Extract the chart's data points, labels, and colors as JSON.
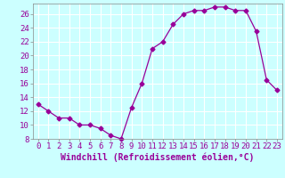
{
  "x": [
    0,
    1,
    2,
    3,
    4,
    5,
    6,
    7,
    8,
    9,
    10,
    11,
    12,
    13,
    14,
    15,
    16,
    17,
    18,
    19,
    20,
    21,
    22,
    23
  ],
  "y": [
    13,
    12,
    11,
    11,
    10,
    10,
    9.5,
    8.5,
    8,
    12.5,
    16,
    21,
    22,
    24.5,
    26,
    26.5,
    26.5,
    27,
    27,
    26.5,
    26.5,
    23.5,
    16.5,
    15
  ],
  "line_color": "#990099",
  "marker": "D",
  "marker_size": 2.5,
  "background_color": "#ccffff",
  "grid_color": "#ffffff",
  "xlabel": "Windchill (Refroidissement éolien,°C)",
  "xlim": [
    -0.5,
    23.5
  ],
  "ylim": [
    8,
    27.5
  ],
  "yticks": [
    8,
    10,
    12,
    14,
    16,
    18,
    20,
    22,
    24,
    26
  ],
  "xticks": [
    0,
    1,
    2,
    3,
    4,
    5,
    6,
    7,
    8,
    9,
    10,
    11,
    12,
    13,
    14,
    15,
    16,
    17,
    18,
    19,
    20,
    21,
    22,
    23
  ],
  "tick_label_fontsize": 6.5,
  "xlabel_fontsize": 7
}
